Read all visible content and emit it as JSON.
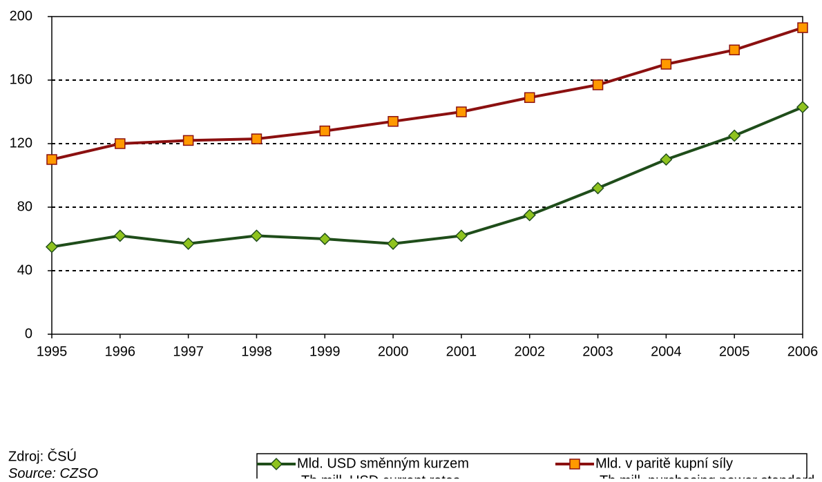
{
  "chart_data": {
    "type": "line",
    "categories": [
      "1995",
      "1996",
      "1997",
      "1998",
      "1999",
      "2000",
      "2001",
      "2002",
      "2003",
      "2004",
      "2005",
      "2006"
    ],
    "series": [
      {
        "name": [
          "Mld. USD směnným kurzem",
          "Th.mill. USD current rates"
        ],
        "color": "#1f4d1a",
        "marker": "diamond",
        "marker_color": "#8fc31f",
        "values": [
          55,
          62,
          57,
          62,
          60,
          57,
          62,
          75,
          92,
          110,
          125,
          143
        ]
      },
      {
        "name": [
          "Mld. v paritě kupní síly",
          "Th.mill. purchasing power standard"
        ],
        "color": "#8b1010",
        "marker": "square",
        "marker_color": "#ff9900",
        "values": [
          110,
          120,
          122,
          123,
          128,
          134,
          140,
          149,
          157,
          170,
          179,
          193
        ]
      }
    ],
    "ylim": [
      0,
      200
    ],
    "yticks": [
      0,
      40,
      80,
      120,
      160,
      200
    ],
    "grid": true,
    "source": [
      "Zdroj: ČSÚ",
      "Source: CZSO"
    ]
  }
}
